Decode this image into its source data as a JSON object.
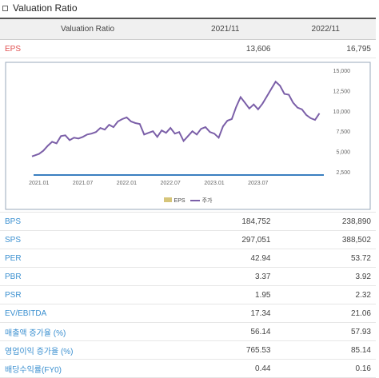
{
  "title": "Valuation Ratio",
  "table": {
    "header": [
      "Valuation Ratio",
      "2021/11",
      "2022/11"
    ],
    "rows": [
      {
        "label": "EPS",
        "v1": "13,606",
        "v2": "16,795"
      },
      {
        "label": "BPS",
        "v1": "184,752",
        "v2": "238,890"
      },
      {
        "label": "SPS",
        "v1": "297,051",
        "v2": "388,502"
      },
      {
        "label": "PER",
        "v1": "42.94",
        "v2": "53.72"
      },
      {
        "label": "PBR",
        "v1": "3.37",
        "v2": "3.92"
      },
      {
        "label": "PSR",
        "v1": "1.95",
        "v2": "2.32"
      },
      {
        "label": "EV/EBITDA",
        "v1": "17.34",
        "v2": "21.06"
      },
      {
        "label": "매출액 증가율 (%)",
        "v1": "56.14",
        "v2": "57.93"
      },
      {
        "label": "영업이익 증가율 (%)",
        "v1": "765.53",
        "v2": "85.14"
      },
      {
        "label": "배당수익률(FY0)",
        "v1": "0.44",
        "v2": "0.16"
      }
    ]
  },
  "colors": {
    "eps_label": "#e05050",
    "row_label": "#3a8fd0",
    "price_line": "#7b5fa8",
    "eps_legend": "#d6c57a",
    "baseline": "#3a7fc0"
  },
  "chart_data": {
    "type": "line",
    "x_ticks": [
      "2021.01",
      "2021.07",
      "2022.01",
      "2022.07",
      "2023.01",
      "2023.07"
    ],
    "y_ticks": [
      "15,000",
      "12,500",
      "10,000",
      "7,500",
      "5,000",
      "2,500"
    ],
    "ylim": [
      2500,
      15000
    ],
    "xlim": [
      2020.92,
      2024.25
    ],
    "legend": [
      "EPS",
      "주가"
    ],
    "legend_position": "bottom",
    "series": [
      {
        "name": "주가",
        "x": [
          2020.92,
          2021.0,
          2021.05,
          2021.1,
          2021.15,
          2021.2,
          2021.25,
          2021.3,
          2021.35,
          2021.4,
          2021.45,
          2021.5,
          2021.55,
          2021.6,
          2021.65,
          2021.7,
          2021.75,
          2021.8,
          2021.85,
          2021.9,
          2021.95,
          2022.0,
          2022.05,
          2022.1,
          2022.15,
          2022.2,
          2022.25,
          2022.3,
          2022.35,
          2022.4,
          2022.45,
          2022.5,
          2022.55,
          2022.6,
          2022.65,
          2022.7,
          2022.75,
          2022.8,
          2022.85,
          2022.9,
          2022.95,
          2023.0,
          2023.05,
          2023.1,
          2023.15,
          2023.2,
          2023.25,
          2023.3,
          2023.35,
          2023.4,
          2023.45,
          2023.5,
          2023.55,
          2023.6,
          2023.65,
          2023.7,
          2023.75,
          2023.8,
          2023.85,
          2023.9,
          2023.95,
          2024.0,
          2024.05,
          2024.1,
          2024.15,
          2024.2
        ],
        "values": [
          4400,
          4700,
          5100,
          5700,
          6200,
          6000,
          6900,
          7000,
          6400,
          6700,
          6600,
          6800,
          7100,
          7200,
          7400,
          7900,
          7700,
          8300,
          8000,
          8700,
          9000,
          9200,
          8700,
          8500,
          8400,
          7100,
          7300,
          7500,
          6800,
          7600,
          7300,
          7900,
          7200,
          7400,
          6300,
          6900,
          7500,
          7100,
          7800,
          8000,
          7400,
          7200,
          6700,
          8100,
          8800,
          9000,
          10500,
          11700,
          11000,
          10300,
          10800,
          10200,
          10900,
          11800,
          12700,
          13600,
          13100,
          12100,
          12000,
          11000,
          10400,
          10200,
          9500,
          9100,
          8900,
          9700
        ]
      }
    ]
  }
}
